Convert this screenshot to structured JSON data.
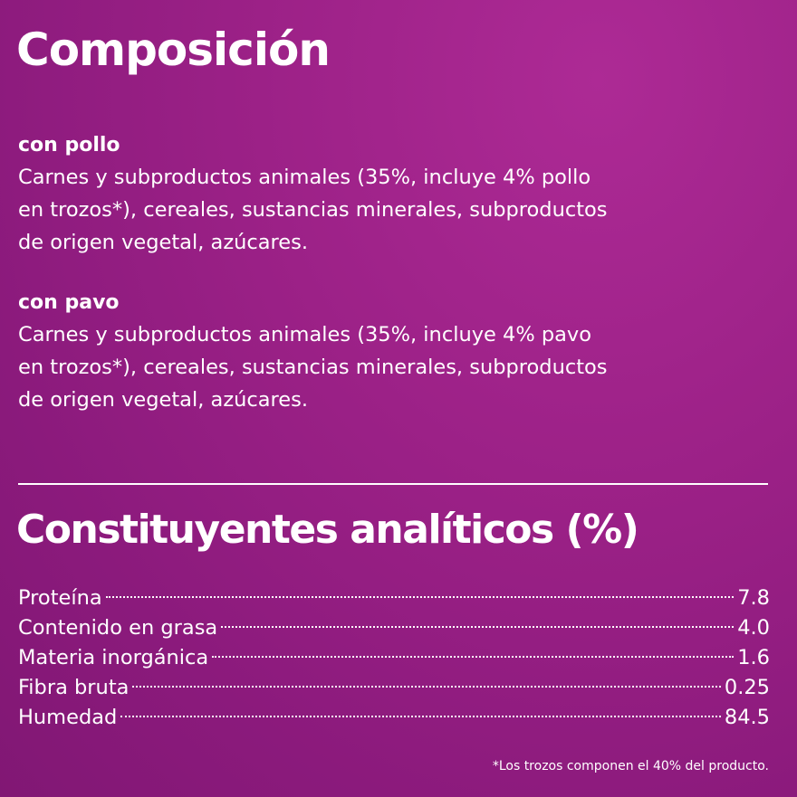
{
  "composition": {
    "title": "Composición",
    "variants": [
      {
        "name": "con pollo",
        "lines": [
          "Carnes y subproductos animales (35%, incluye 4% pollo",
          "en trozos*), cereales, sustancias minerales, subproductos",
          "de origen vegetal, azúcares."
        ]
      },
      {
        "name": "con pavo",
        "lines": [
          "Carnes y subproductos animales (35%, incluye 4% pavo",
          "en trozos*), cereales, sustancias minerales, subproductos",
          "de origen vegetal, azúcares."
        ]
      }
    ]
  },
  "analytic": {
    "title": "Constituyentes analíticos (%)",
    "rows": [
      {
        "label": "Proteína",
        "value": "7.8"
      },
      {
        "label": "Contenido en grasa",
        "value": "4.0"
      },
      {
        "label": "Materia inorgánica",
        "value": "1.6"
      },
      {
        "label": "Fibra bruta",
        "value": "0.25"
      },
      {
        "label": "Humedad",
        "value": "84.5"
      }
    ]
  },
  "footnote": "*Los trozos componen el 40% del producto.",
  "colors": {
    "background": "#9c2187",
    "text": "#ffffff"
  }
}
